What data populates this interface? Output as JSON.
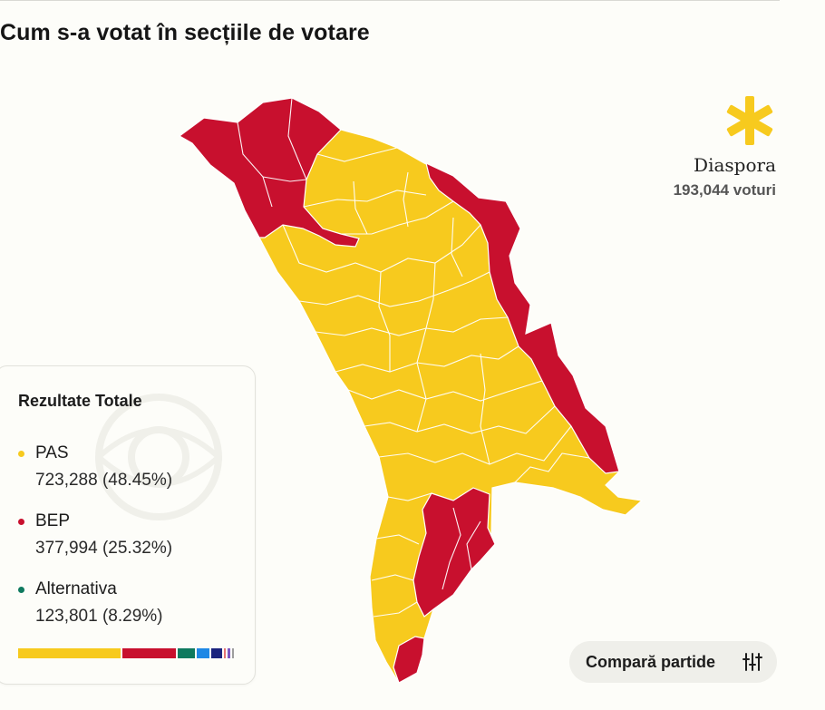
{
  "header": {
    "title": "Cum s-a votat în secțiile de votare"
  },
  "diaspora": {
    "label": "Diaspora",
    "votes": "193,044 voturi",
    "icon": "asterisk-icon",
    "color": "#f7ca1e"
  },
  "map": {
    "colors": {
      "PAS": "#f7ca1e",
      "BEP": "#c8102e",
      "border": "#ffffff"
    },
    "regions_won": {
      "PAS": "majority of districts (center, south-center)",
      "BEP": "north-west, eastern strip, south-east, far south"
    }
  },
  "legend": {
    "title": "Rezultate Totale",
    "parties": [
      {
        "name": "PAS",
        "value": "723,288 (48.45%)",
        "color": "#f7ca1e"
      },
      {
        "name": "BEP",
        "value": "377,994 (25.32%)",
        "color": "#c8102e"
      },
      {
        "name": "Alternativa",
        "value": "123,801 (8.29%)",
        "color": "#0f7a5f"
      }
    ],
    "bar_segments": [
      {
        "share": 48.45,
        "color": "#f7ca1e"
      },
      {
        "share": 25.32,
        "color": "#c8102e"
      },
      {
        "share": 8.29,
        "color": "#0f7a5f"
      },
      {
        "share": 6.0,
        "color": "#1e88e5"
      },
      {
        "share": 5.0,
        "color": "#1a237e"
      },
      {
        "share": 1.2,
        "color": "#e57373"
      },
      {
        "share": 1.0,
        "color": "#7e57c2"
      },
      {
        "share": 1.0,
        "color": "#9e9e9e"
      }
    ]
  },
  "compare": {
    "label": "Compară partide",
    "icon": "sliders-icon"
  }
}
